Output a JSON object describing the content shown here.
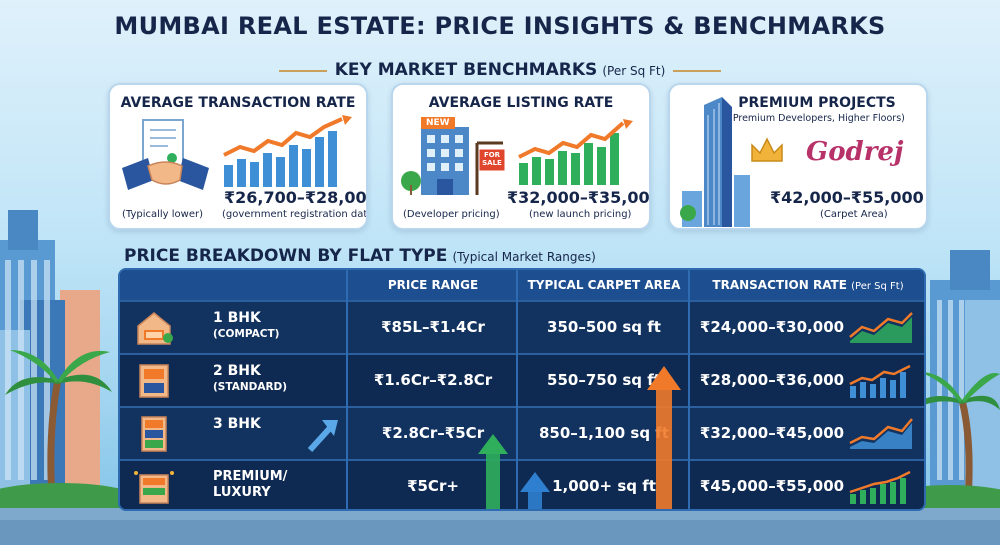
{
  "title": "MUMBAI REAL ESTATE: PRICE INSIGHTS & BENCHMARKS",
  "benchmarks": {
    "heading": "KEY MARKET BENCHMARKS",
    "heading_note": "(Per Sq Ft)",
    "cards": [
      {
        "title": "AVERAGE TRANSACTION RATE",
        "subtitle": "",
        "value": "₹26,700–₹28,000",
        "left_note": "(Typically lower)",
        "right_note": "(government registration data)",
        "icon": "handshake-icon"
      },
      {
        "title": "AVERAGE LISTING RATE",
        "subtitle": "",
        "value": "₹32,000–₹35,000",
        "left_note": "(Developer pricing)",
        "right_note": "(new launch pricing)",
        "badge_new": "NEW",
        "sign_text": "FOR SALE",
        "icon": "building-for-sale-icon"
      },
      {
        "title": "PREMIUM PROJECTS",
        "subtitle": "(Premium Developers, Higher Floors)",
        "value": "₹42,000–₹55,000",
        "left_note": "",
        "right_note": "(Carpet Area)",
        "brand": "Godrej",
        "icon": "crown-icon"
      }
    ]
  },
  "breakdown": {
    "heading": "PRICE BREAKDOWN BY FLAT TYPE",
    "heading_note": "(Typical Market Ranges)",
    "columns": {
      "price": "PRICE RANGE",
      "area": "TYPICAL CARPET AREA",
      "rate": "TRANSACTION RATE",
      "rate_note": "(Per Sq Ft)"
    },
    "rows": [
      {
        "type": "1 BHK",
        "sub": "(COMPACT)",
        "price": "₹85L–₹1.4Cr",
        "area": "350–500 sq ft",
        "rate": "₹24,000–₹30,000",
        "icon": "house-icon"
      },
      {
        "type": "2 BHK",
        "sub": "(STANDARD)",
        "price": "₹1.6Cr–₹2.8Cr",
        "area": "550–750 sq ft",
        "rate": "₹28,000–₹36,000",
        "icon": "apartment-icon"
      },
      {
        "type": "3 BHK",
        "sub": "",
        "price": "₹2.8Cr–₹5Cr",
        "area": "850–1,100 sq ft",
        "rate": "₹32,000–₹45,000",
        "icon": "apartment-tall-icon"
      },
      {
        "type": "PREMIUM/",
        "sub": "LUXURY",
        "price": "₹5Cr+",
        "area": "1,000+ sq ft",
        "rate": "₹45,000–₹55,000",
        "icon": "luxury-building-icon"
      }
    ]
  },
  "colors": {
    "navy": "#0f2a52",
    "header_blue": "#1d4e8f",
    "accent_orange": "#f07a2a",
    "accent_green": "#2fae5c",
    "accent_blue": "#2f7fd0"
  }
}
